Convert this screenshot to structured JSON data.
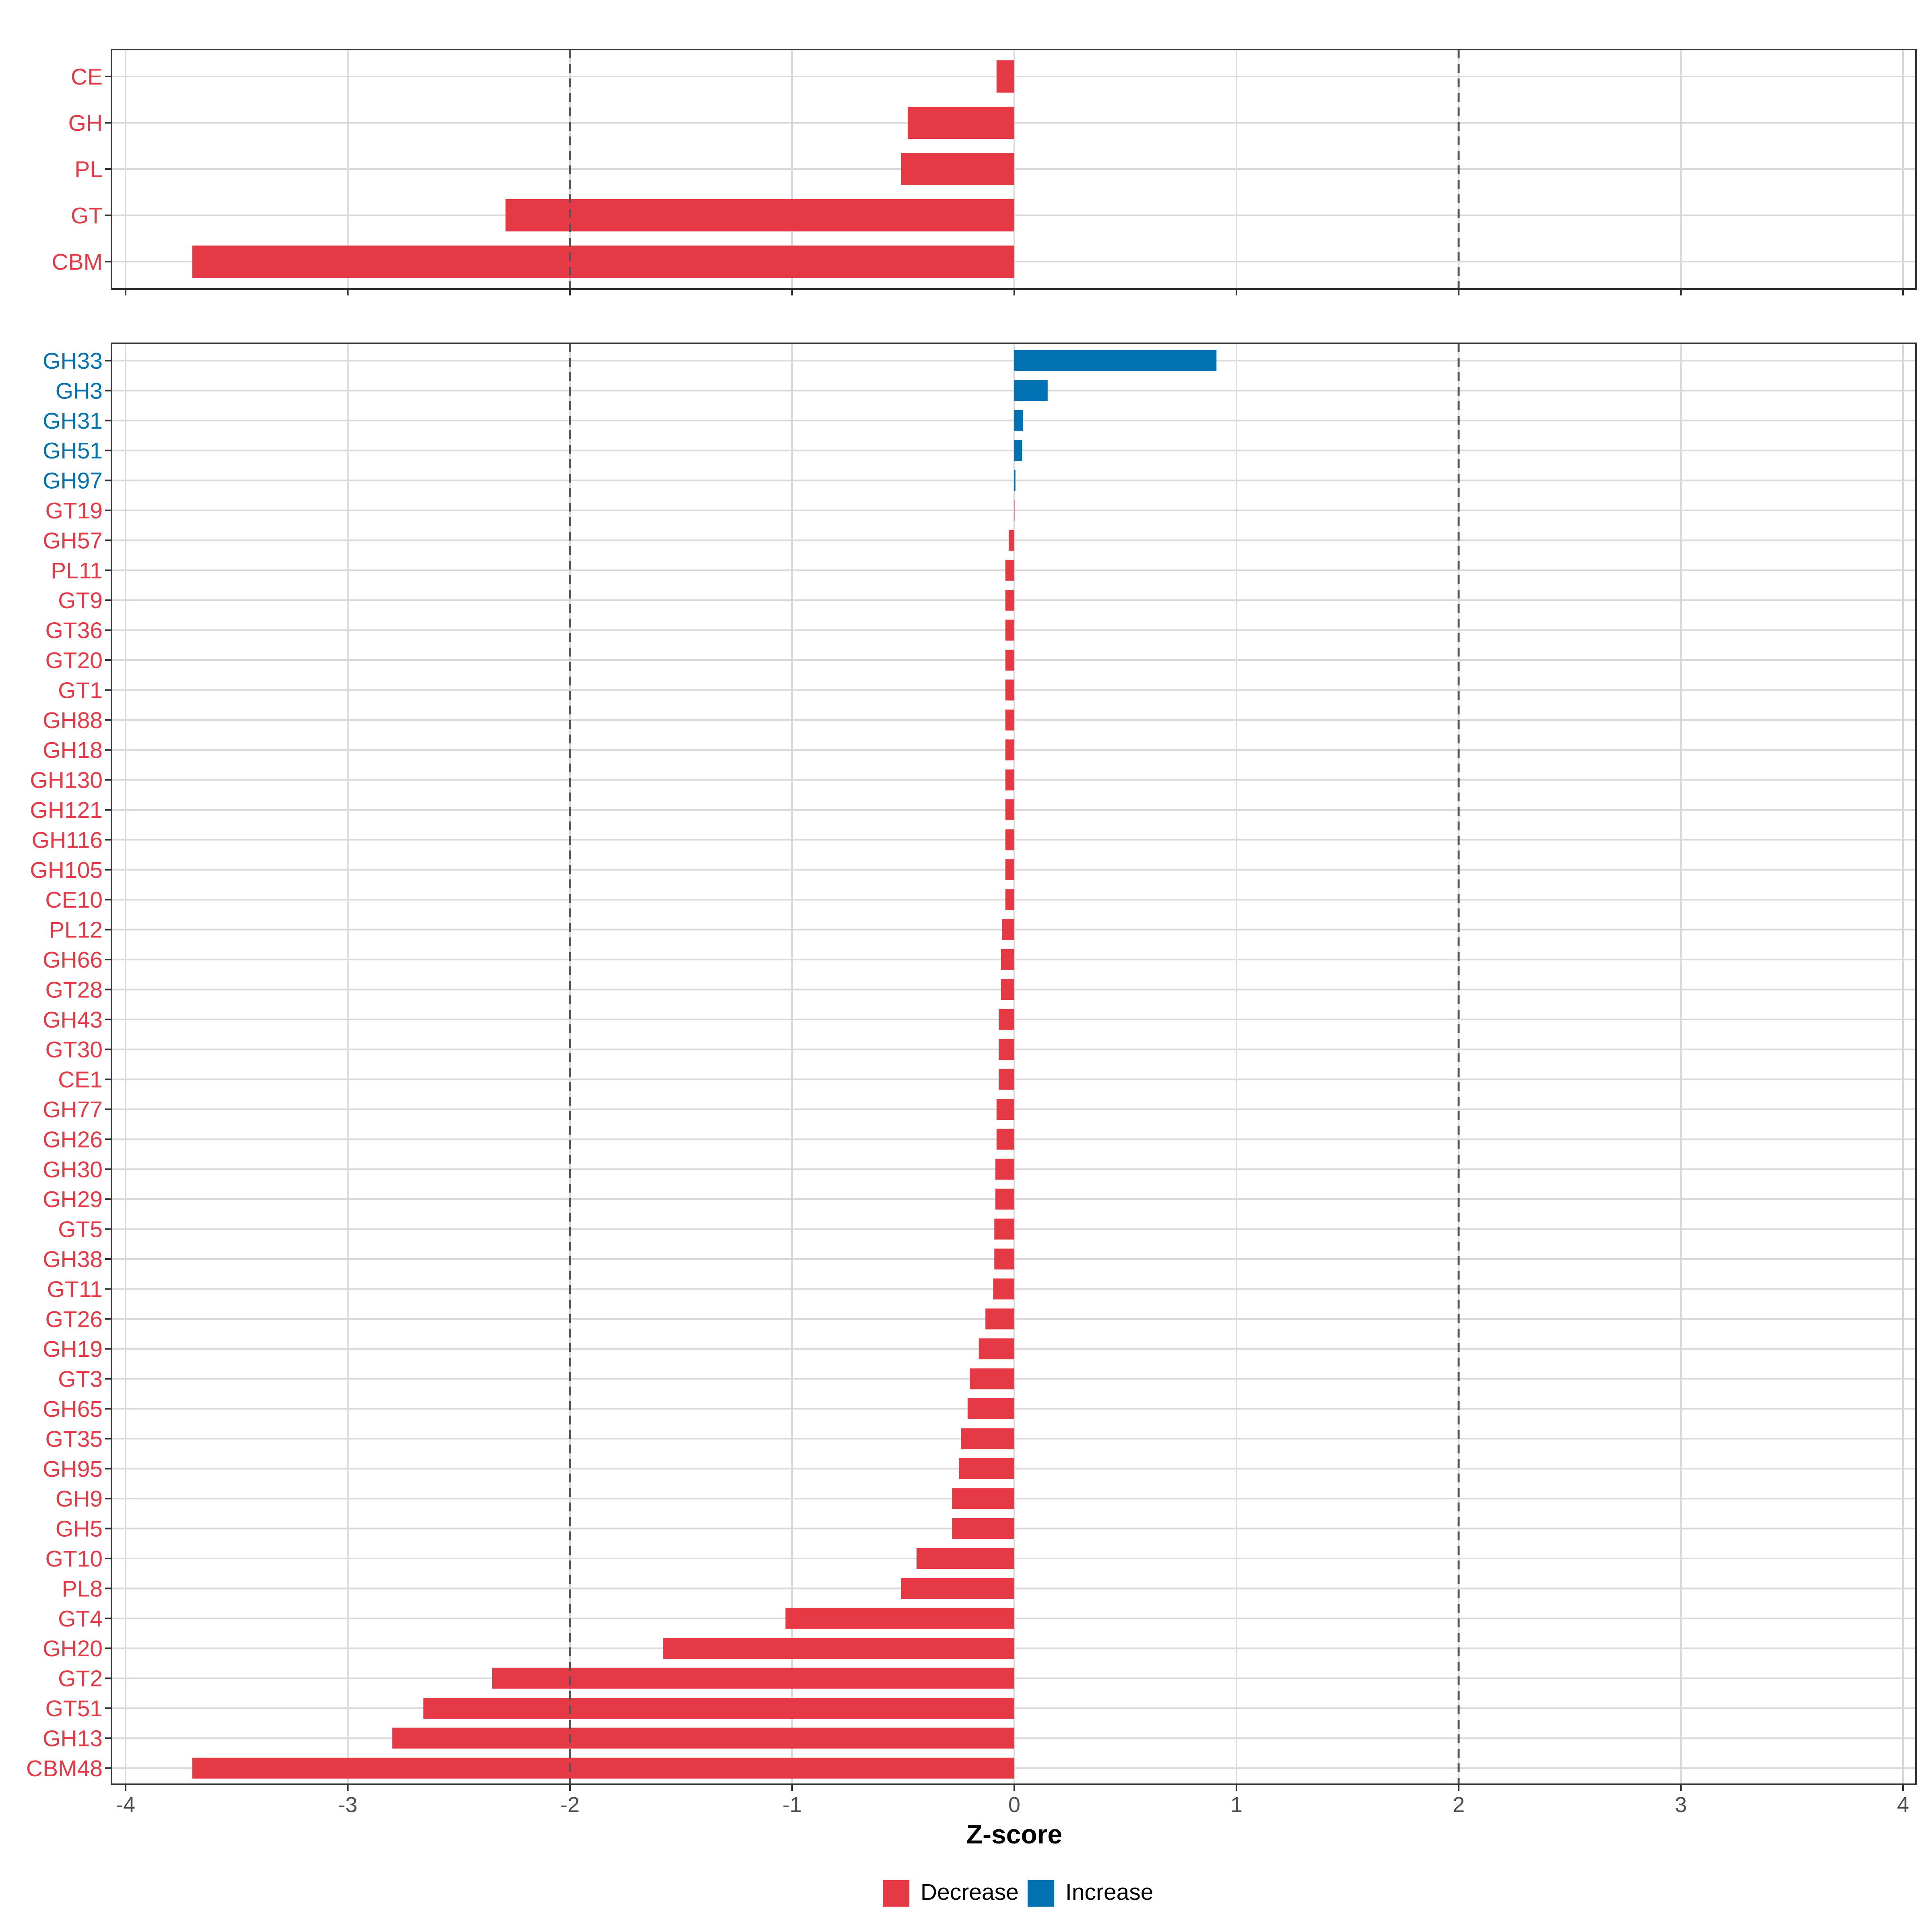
{
  "chart_data": [
    {
      "type": "bar",
      "orientation": "horizontal",
      "panel": "top",
      "categories": [
        "CE",
        "GH",
        "PL",
        "GT",
        "CBM"
      ],
      "values": [
        -0.08,
        -0.48,
        -0.51,
        -2.29,
        -3.7
      ],
      "directions": [
        "Decrease",
        "Decrease",
        "Decrease",
        "Decrease",
        "Decrease"
      ],
      "xlim": [
        -4.1,
        4.1
      ],
      "reference_lines": [
        -2,
        2
      ]
    },
    {
      "type": "bar",
      "orientation": "horizontal",
      "panel": "bottom",
      "categories": [
        "GH33",
        "GH3",
        "GH31",
        "GH51",
        "GH97",
        "GT19",
        "GH57",
        "PL11",
        "GT9",
        "GT36",
        "GT20",
        "GT1",
        "GH88",
        "GH18",
        "GH130",
        "GH121",
        "GH116",
        "GH105",
        "CE10",
        "PL12",
        "GH66",
        "GT28",
        "GH43",
        "GT30",
        "CE1",
        "GH77",
        "GH26",
        "GH30",
        "GH29",
        "GT5",
        "GH38",
        "GT11",
        "GT26",
        "GH19",
        "GT3",
        "GH65",
        "GT35",
        "GH95",
        "GH9",
        "GH5",
        "GT10",
        "PL8",
        "GT4",
        "GH20",
        "GT2",
        "GT51",
        "GH13",
        "CBM48"
      ],
      "values": [
        0.91,
        0.15,
        0.04,
        0.035,
        0.005,
        0.0,
        -0.025,
        -0.04,
        -0.04,
        -0.04,
        -0.04,
        -0.04,
        -0.04,
        -0.04,
        -0.04,
        -0.04,
        -0.04,
        -0.04,
        -0.04,
        -0.055,
        -0.06,
        -0.06,
        -0.07,
        -0.07,
        -0.07,
        -0.08,
        -0.08,
        -0.085,
        -0.085,
        -0.09,
        -0.09,
        -0.095,
        -0.13,
        -0.16,
        -0.2,
        -0.21,
        -0.24,
        -0.25,
        -0.28,
        -0.28,
        -0.44,
        -0.51,
        -1.03,
        -1.58,
        -2.35,
        -2.66,
        -2.8,
        -3.7
      ],
      "directions": [
        "Increase",
        "Increase",
        "Increase",
        "Increase",
        "Increase",
        "Decrease",
        "Decrease",
        "Decrease",
        "Decrease",
        "Decrease",
        "Decrease",
        "Decrease",
        "Decrease",
        "Decrease",
        "Decrease",
        "Decrease",
        "Decrease",
        "Decrease",
        "Decrease",
        "Decrease",
        "Decrease",
        "Decrease",
        "Decrease",
        "Decrease",
        "Decrease",
        "Decrease",
        "Decrease",
        "Decrease",
        "Decrease",
        "Decrease",
        "Decrease",
        "Decrease",
        "Decrease",
        "Decrease",
        "Decrease",
        "Decrease",
        "Decrease",
        "Decrease",
        "Decrease",
        "Decrease",
        "Decrease",
        "Decrease",
        "Decrease",
        "Decrease",
        "Decrease",
        "Decrease",
        "Decrease",
        "Decrease"
      ],
      "xlim": [
        -4.1,
        4.1
      ],
      "reference_lines": [
        -2,
        2
      ],
      "xlabel": "Z-score",
      "xticks": [
        -4,
        -3,
        -2,
        -1,
        0,
        1,
        2,
        3,
        4
      ],
      "xtick_labels": [
        "-4",
        "-3",
        "-2",
        "-1",
        "0",
        "1",
        "2",
        "3",
        "4"
      ]
    }
  ],
  "legend": {
    "position": "bottom",
    "entries": [
      {
        "label": "Decrease",
        "color": "#e63946"
      },
      {
        "label": "Increase",
        "color": "#0072b2"
      }
    ]
  },
  "colors": {
    "Decrease": "#e63946",
    "Increase": "#0072b2",
    "grid": "#d9d9d9",
    "panel_border": "#333333",
    "reference_line": "#555555"
  }
}
